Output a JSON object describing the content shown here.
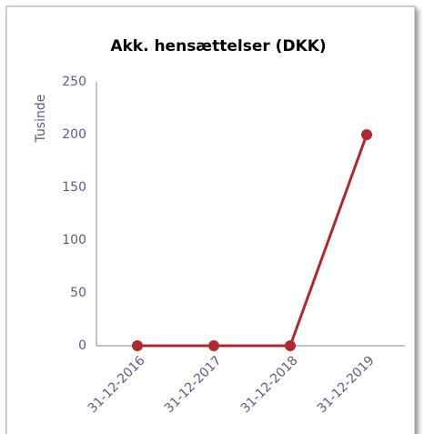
{
  "chart_data": {
    "type": "line",
    "title": "Akk. hensættelser (DKK)",
    "y_label": "Tusinde",
    "categories": [
      "31-12-2016",
      "31-12-2017",
      "31-12-2018",
      "31-12-2019"
    ],
    "series": [
      {
        "name": "Akk. hensættelser",
        "color": "#b0282d",
        "values": [
          0,
          0,
          0,
          200
        ]
      }
    ],
    "ylim": [
      0,
      250
    ],
    "yticks": [
      0,
      50,
      100,
      150,
      200,
      250
    ],
    "grid": false
  }
}
